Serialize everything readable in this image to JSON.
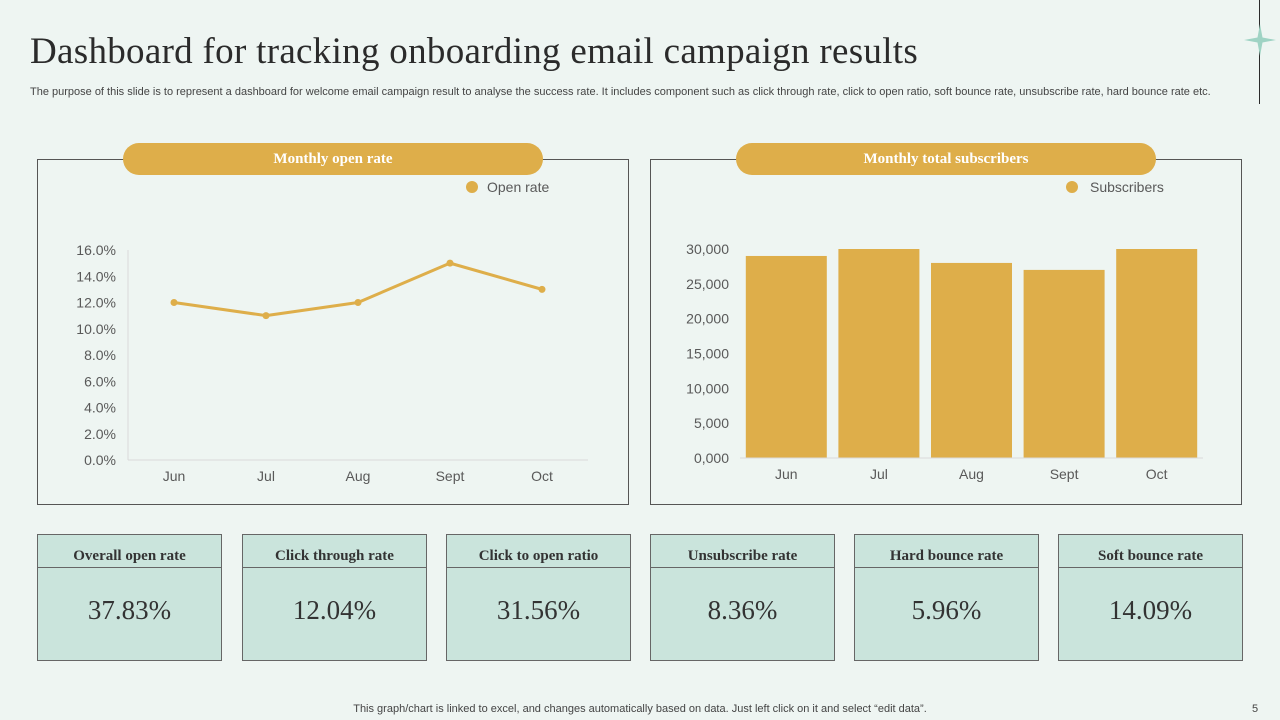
{
  "title": "Dashboard for tracking onboarding email campaign results",
  "subtitle": "The purpose of this slide is to represent a dashboard for welcome email campaign result to analyse the success rate. It includes component such as click through rate, click to open ratio, soft bounce rate, unsubscribe rate, hard bounce rate etc.",
  "colors": {
    "accent": "#deae4a",
    "background": "#eef5f2",
    "kpi_bg": "#cae4dc"
  },
  "chart_data": [
    {
      "type": "line",
      "title": "Monthly open rate",
      "legend": "Open rate",
      "legend_position": "top-right",
      "categories": [
        "Jun",
        "Jul",
        "Aug",
        "Sept",
        "Oct"
      ],
      "values": [
        12.0,
        11.0,
        12.0,
        15.0,
        13.0
      ],
      "ylim": [
        0,
        16
      ],
      "yticks": [
        "0.0%",
        "2.0%",
        "4.0%",
        "6.0%",
        "8.0%",
        "10.0%",
        "12.0%",
        "14.0%",
        "16.0%"
      ],
      "xlabel": "",
      "ylabel": ""
    },
    {
      "type": "bar",
      "title": "Monthly total subscribers",
      "legend": "Subscribers",
      "legend_position": "top-right",
      "categories": [
        "Jun",
        "Jul",
        "Aug",
        "Sept",
        "Oct"
      ],
      "values": [
        29000,
        30000,
        28000,
        27000,
        30000
      ],
      "ylim": [
        0,
        30000
      ],
      "yticks": [
        "0,000",
        "5,000",
        "10,000",
        "15,000",
        "20,000",
        "25,000",
        "30,000"
      ],
      "xlabel": "",
      "ylabel": ""
    }
  ],
  "kpis": [
    {
      "label": "Overall open rate",
      "value": "37.83%"
    },
    {
      "label": "Click through rate",
      "value": "12.04%"
    },
    {
      "label": "Click to open ratio",
      "value": "31.56%"
    },
    {
      "label": "Unsubscribe rate",
      "value": "8.36%"
    },
    {
      "label": "Hard bounce rate",
      "value": "5.96%"
    },
    {
      "label": "Soft bounce rate",
      "value": "14.09%"
    }
  ],
  "footer": "This graph/chart is linked to excel,  and changes automatically based on data. Just left click on it and select “edit data”.",
  "page_number": "5"
}
